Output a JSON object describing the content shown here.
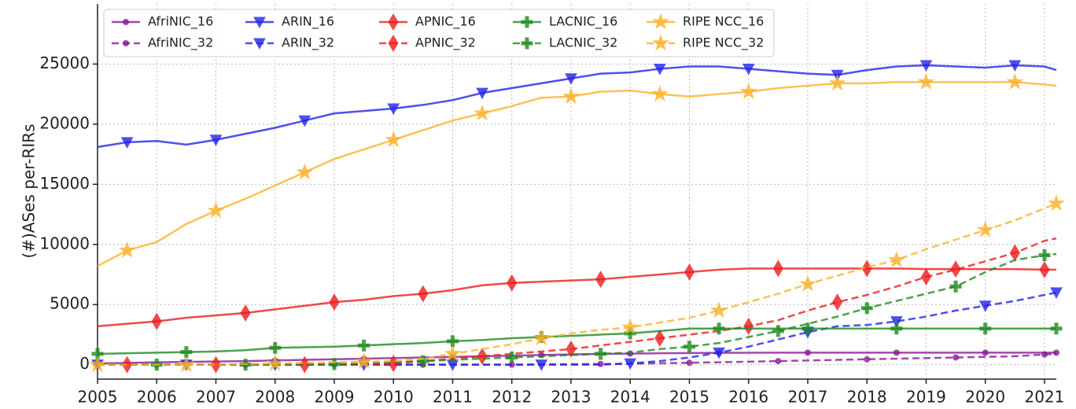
{
  "chart_data": {
    "type": "line",
    "y_label": "(#)ASes per-RIRs",
    "x": [
      2005,
      2005.5,
      2006,
      2006.5,
      2007,
      2007.5,
      2008,
      2008.5,
      2009,
      2009.5,
      2010,
      2010.5,
      2011,
      2011.5,
      2012,
      2012.5,
      2013,
      2013.5,
      2014,
      2014.5,
      2015,
      2015.5,
      2016,
      2016.5,
      2017,
      2017.5,
      2018,
      2018.5,
      2019,
      2019.5,
      2020,
      2020.5,
      2021,
      2021.2
    ],
    "xlim": [
      2005,
      2021.2
    ],
    "xticks": [
      2005,
      2006,
      2007,
      2008,
      2009,
      2010,
      2011,
      2012,
      2013,
      2014,
      2015,
      2016,
      2017,
      2018,
      2019,
      2020,
      2021
    ],
    "ylim": [
      -1200,
      30000
    ],
    "yticks": [
      0,
      5000,
      10000,
      15000,
      20000,
      25000
    ],
    "grid": true,
    "legend": "upper left",
    "series": [
      {
        "name": "AfriNIC_16",
        "color": "#8b1a96",
        "marker": "circle",
        "linestyle": "solid",
        "values": [
          100,
          150,
          200,
          230,
          260,
          300,
          350,
          400,
          450,
          500,
          550,
          600,
          650,
          700,
          750,
          800,
          850,
          900,
          920,
          950,
          970,
          980,
          990,
          1000,
          1000,
          1000,
          1000,
          1000,
          1000,
          1000,
          1000,
          1000,
          1000,
          1000
        ]
      },
      {
        "name": "AfriNIC_32",
        "color": "#8b1a96",
        "marker": "circle",
        "linestyle": "dashed",
        "values": [
          0,
          0,
          0,
          0,
          0,
          0,
          0,
          0,
          0,
          0,
          0,
          0,
          0,
          0,
          0,
          20,
          40,
          60,
          80,
          120,
          160,
          200,
          250,
          300,
          350,
          400,
          450,
          500,
          550,
          600,
          650,
          700,
          850,
          900
        ]
      },
      {
        "name": "ARIN_16",
        "color": "#2323e8",
        "marker": "triangle",
        "linestyle": "solid",
        "values": [
          18100,
          18500,
          18600,
          18300,
          18700,
          19200,
          19700,
          20300,
          20900,
          21100,
          21300,
          21600,
          22000,
          22600,
          23000,
          23400,
          23800,
          24200,
          24300,
          24600,
          24800,
          24800,
          24600,
          24400,
          24200,
          24100,
          24500,
          24800,
          24900,
          24800,
          24700,
          24900,
          24800,
          24500
        ]
      },
      {
        "name": "ARIN_32",
        "color": "#2323e8",
        "marker": "triangle",
        "linestyle": "dashed",
        "values": [
          0,
          0,
          0,
          0,
          0,
          0,
          0,
          0,
          0,
          0,
          0,
          0,
          0,
          0,
          0,
          0,
          0,
          0,
          100,
          300,
          600,
          1000,
          1500,
          2100,
          2700,
          3200,
          3300,
          3600,
          4000,
          4500,
          4900,
          5300,
          5800,
          6000
        ]
      },
      {
        "name": "APNIC_16",
        "color": "#ee1c1c",
        "marker": "diamond",
        "linestyle": "solid",
        "values": [
          3200,
          3400,
          3600,
          3900,
          4100,
          4300,
          4600,
          4900,
          5200,
          5400,
          5700,
          5900,
          6200,
          6600,
          6800,
          6900,
          7000,
          7100,
          7300,
          7500,
          7700,
          7900,
          8000,
          8000,
          8000,
          8000,
          8000,
          8000,
          7950,
          7950,
          7950,
          7950,
          7900,
          7900
        ]
      },
      {
        "name": "APNIC_32",
        "color": "#ee1c1c",
        "marker": "diamond",
        "linestyle": "dashed",
        "values": [
          0,
          0,
          0,
          0,
          0,
          0,
          0,
          0,
          0,
          0,
          100,
          300,
          500,
          700,
          900,
          1100,
          1300,
          1600,
          1900,
          2200,
          2500,
          2800,
          3200,
          3700,
          4500,
          5200,
          5800,
          6500,
          7300,
          7900,
          8600,
          9300,
          10300,
          10500
        ]
      },
      {
        "name": "LACNIC_16",
        "color": "#1f8a1f",
        "marker": "plus",
        "linestyle": "solid",
        "values": [
          900,
          950,
          1000,
          1050,
          1100,
          1200,
          1400,
          1450,
          1500,
          1600,
          1700,
          1800,
          1950,
          2050,
          2200,
          2300,
          2400,
          2500,
          2600,
          2800,
          3000,
          3000,
          3000,
          3000,
          3000,
          3000,
          3000,
          3000,
          3000,
          3000,
          3000,
          3000,
          3000,
          3000
        ]
      },
      {
        "name": "LACNIC_32",
        "color": "#1f8a1f",
        "marker": "plus",
        "linestyle": "dashed",
        "values": [
          0,
          0,
          0,
          0,
          0,
          0,
          0,
          0,
          50,
          100,
          200,
          300,
          400,
          500,
          600,
          700,
          800,
          900,
          1000,
          1300,
          1500,
          1800,
          2300,
          2800,
          3400,
          4000,
          4700,
          5300,
          5900,
          6500,
          7700,
          8700,
          9100,
          9200
        ]
      },
      {
        "name": "RIPE NCC_16",
        "color": "#fbb12a",
        "marker": "star",
        "linestyle": "solid",
        "values": [
          8200,
          9500,
          10200,
          11700,
          12800,
          13800,
          14900,
          16000,
          17100,
          17900,
          18700,
          19500,
          20300,
          20900,
          21500,
          22200,
          22300,
          22700,
          22800,
          22500,
          22300,
          22500,
          22700,
          23000,
          23200,
          23400,
          23400,
          23500,
          23500,
          23500,
          23500,
          23500,
          23300,
          23200
        ]
      },
      {
        "name": "RIPE NCC_32",
        "color": "#fbb12a",
        "marker": "star",
        "linestyle": "dashed",
        "values": [
          0,
          0,
          0,
          0,
          0,
          50,
          100,
          150,
          200,
          250,
          300,
          500,
          900,
          1300,
          1700,
          2200,
          2600,
          2900,
          3100,
          3500,
          3900,
          4500,
          5200,
          5900,
          6700,
          7400,
          8100,
          8700,
          9600,
          10400,
          11200,
          12000,
          13000,
          13400
        ]
      }
    ]
  }
}
